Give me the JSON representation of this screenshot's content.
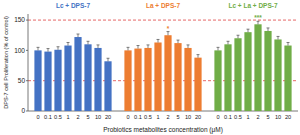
{
  "chart_data": {
    "type": "bar",
    "x_label": "Probiotics metabolites concentration (μM)",
    "y_label": "DPS-7 cell Proliferation (% of control)",
    "categories": [
      "0",
      "0.1",
      "0.5",
      "1",
      "2",
      "5",
      "10",
      "20"
    ],
    "series": [
      {
        "name": "Lc + DPS-7",
        "color": "#4472c4",
        "values": [
          100,
          98,
          101,
          108,
          122,
          110,
          104,
          82
        ],
        "errors": [
          5,
          5,
          5,
          5,
          5,
          5,
          5,
          5
        ]
      },
      {
        "name": "La + DPS-7",
        "color": "#ed7d31",
        "values": [
          100,
          103,
          104,
          113,
          125,
          112,
          104,
          88
        ],
        "errors": [
          5,
          5,
          5,
          5,
          6,
          5,
          5,
          5
        ]
      },
      {
        "name": "Lc + La + DPS-7",
        "color": "#70ad47",
        "values": [
          100,
          110,
          120,
          130,
          143,
          132,
          118,
          108
        ],
        "errors": [
          5,
          5,
          5,
          5,
          5,
          5,
          5,
          5
        ]
      }
    ],
    "annotations": [
      {
        "series": 1,
        "index": 4,
        "text": "*"
      },
      {
        "series": 2,
        "index": 4,
        "text": "***"
      }
    ],
    "reference_lines": [
      50,
      150
    ],
    "ylim": [
      0,
      160
    ],
    "yticks": [
      0,
      50,
      100,
      150
    ],
    "grid": false
  }
}
